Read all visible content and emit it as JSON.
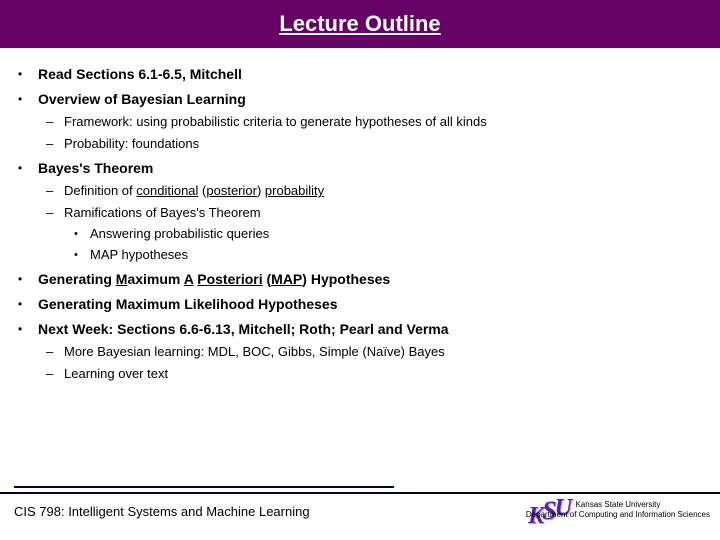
{
  "title": "Lecture Outline",
  "bullets": {
    "b1": "Read Sections 6.1-6.5, Mitchell",
    "b2": "Overview of Bayesian Learning",
    "b2a": "Framework: using probabilistic criteria to generate hypotheses of all kinds",
    "b2b": "Probability: foundations",
    "b3": "Bayes's Theorem",
    "b3a_pre": "Definition of ",
    "b3a_u1": "conditional",
    "b3a_mid": " (",
    "b3a_u2": "posterior",
    "b3a_mid2": ") ",
    "b3a_u3": "probability",
    "b3b": "Ramifications of Bayes's Theorem",
    "b3b1": "Answering probabilistic queries",
    "b3b2": "MAP hypotheses",
    "b4_pre": "Generating ",
    "b4_u1": "M",
    "b4_mid1": "aximum ",
    "b4_u2": "A",
    "b4_mid2": " ",
    "b4_u3": "P",
    "b4_mid3": "osteriori",
    "b4_mid4": " (",
    "b4_u4": "MAP",
    "b4_mid5": ") Hypotheses",
    "b5": "Generating Maximum Likelihood Hypotheses",
    "b6": "Next Week: Sections 6.6-6.13, Mitchell; Roth; Pearl and Verma",
    "b6a": "More Bayesian learning: MDL, BOC, Gibbs, Simple (Naïve) Bayes",
    "b6b": "Learning over text"
  },
  "footer": {
    "course": "CIS 798: Intelligent Systems and Machine Learning",
    "uni": "Kansas State University",
    "dept": "Department of Computing and Information Sciences",
    "logo_k": "K",
    "logo_s": "S",
    "logo_u": "U"
  },
  "colors": {
    "title_bg": "#660066",
    "title_fg": "#ffffff",
    "rule": "#000033",
    "logo": "#5522aa"
  }
}
